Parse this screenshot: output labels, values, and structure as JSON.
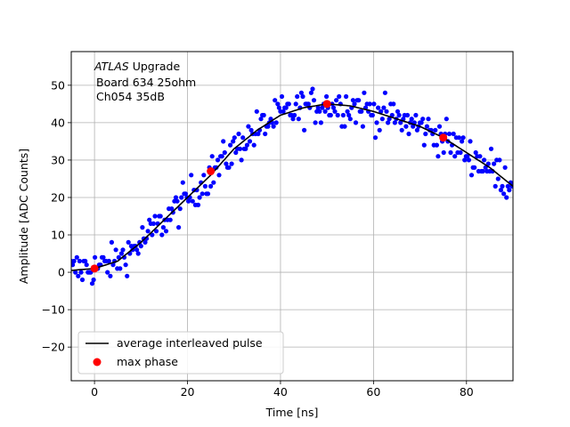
{
  "chart_data": {
    "type": "scatter",
    "title": "",
    "annotation": {
      "lines": [
        "ATLAS Upgrade",
        "Board 634 25ohm",
        "Ch054 35dB"
      ]
    },
    "xlabel": "Time [ns]",
    "ylabel": "Amplitude [ADC Counts]",
    "xlim": [
      -5,
      90
    ],
    "ylim": [
      -29,
      59
    ],
    "xticks": [
      0,
      20,
      40,
      60,
      80
    ],
    "yticks": [
      -20,
      -10,
      0,
      10,
      20,
      30,
      40,
      50
    ],
    "grid": true,
    "legend_position": "lower-left",
    "series": [
      {
        "name": "",
        "kind": "scatter-cloud",
        "color": "#0000ff",
        "x_range": [
          -5,
          90
        ],
        "x_step": 0.3,
        "y_step": 1,
        "noise_spread": 8
      },
      {
        "name": "average interleaved pulse",
        "kind": "line",
        "color": "#000000",
        "x": [
          -5,
          0,
          5,
          10,
          15,
          20,
          25,
          30,
          35,
          40,
          45,
          50,
          55,
          60,
          65,
          70,
          75,
          80,
          85,
          90
        ],
        "y": [
          0.5,
          1,
          3,
          8,
          14,
          20,
          26,
          33,
          38,
          42,
          44,
          45,
          44.5,
          43,
          41,
          39,
          36,
          32,
          28,
          23
        ]
      },
      {
        "name": "max phase",
        "kind": "points",
        "color": "#ff0000",
        "x": [
          0,
          25,
          50,
          75
        ],
        "y": [
          1,
          27,
          45,
          36
        ]
      }
    ]
  }
}
